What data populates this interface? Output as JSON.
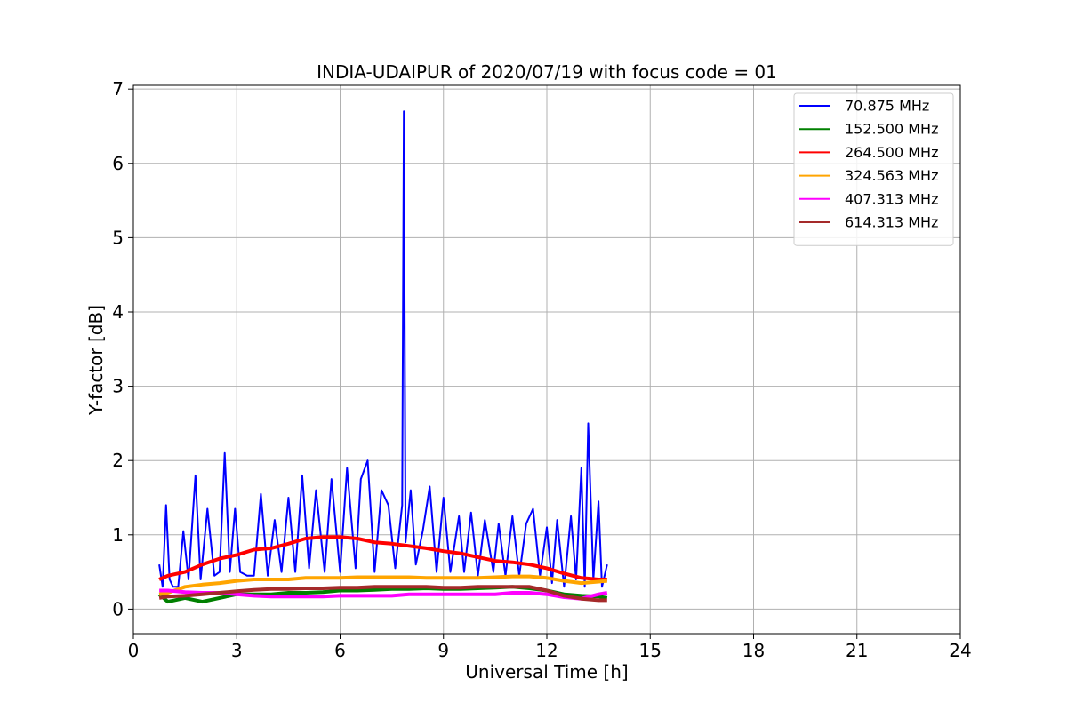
{
  "chart_data": {
    "type": "line",
    "title": "INDIA-UDAIPUR of 2020/07/19 with focus code = 01",
    "xlabel": "Universal Time [h]",
    "ylabel": "Y-factor [dB]",
    "xlim": [
      0,
      24
    ],
    "ylim": [
      -0.33,
      7.05
    ],
    "xticks": [
      0,
      3,
      6,
      9,
      12,
      15,
      18,
      21,
      24
    ],
    "yticks": [
      0,
      1,
      2,
      3,
      4,
      5,
      6,
      7
    ],
    "grid": true,
    "legend_position": "top-right",
    "series": [
      {
        "name": " 70.875 MHz",
        "color": "#0000ff",
        "x": [
          0.75,
          0.85,
          0.95,
          1.05,
          1.15,
          1.3,
          1.45,
          1.6,
          1.8,
          1.95,
          2.15,
          2.35,
          2.5,
          2.65,
          2.8,
          2.95,
          3.1,
          3.3,
          3.5,
          3.7,
          3.9,
          4.1,
          4.3,
          4.5,
          4.7,
          4.9,
          5.1,
          5.3,
          5.55,
          5.75,
          6.0,
          6.2,
          6.45,
          6.6,
          6.8,
          7.0,
          7.2,
          7.4,
          7.6,
          7.8,
          7.85,
          7.9,
          8.05,
          8.2,
          8.4,
          8.6,
          8.8,
          9.0,
          9.2,
          9.45,
          9.6,
          9.8,
          10.0,
          10.2,
          10.45,
          10.6,
          10.8,
          11.0,
          11.2,
          11.4,
          11.6,
          11.8,
          12.0,
          12.15,
          12.3,
          12.5,
          12.7,
          12.85,
          13.0,
          13.1,
          13.2,
          13.35,
          13.5,
          13.6,
          13.75
        ],
        "values": [
          0.6,
          0.3,
          1.4,
          0.4,
          0.3,
          0.3,
          1.05,
          0.4,
          1.8,
          0.4,
          1.35,
          0.45,
          0.5,
          2.1,
          0.5,
          1.35,
          0.5,
          0.45,
          0.45,
          1.55,
          0.45,
          1.2,
          0.5,
          1.5,
          0.5,
          1.8,
          0.55,
          1.6,
          0.5,
          1.75,
          0.5,
          1.9,
          0.55,
          1.75,
          2.0,
          0.5,
          1.6,
          1.4,
          0.55,
          1.4,
          6.7,
          0.9,
          1.6,
          0.6,
          1.05,
          1.65,
          0.5,
          1.5,
          0.5,
          1.25,
          0.5,
          1.3,
          0.45,
          1.2,
          0.5,
          1.15,
          0.45,
          1.25,
          0.45,
          1.15,
          1.35,
          0.45,
          1.1,
          0.35,
          1.2,
          0.3,
          1.25,
          0.4,
          1.9,
          0.3,
          2.5,
          0.4,
          1.45,
          0.3,
          0.6
        ]
      },
      {
        "name": "152.500 MHz",
        "color": "#008000",
        "x": [
          0.75,
          1.0,
          1.5,
          2.0,
          2.5,
          3.0,
          3.5,
          4.0,
          4.5,
          5.0,
          5.5,
          6.0,
          6.5,
          7.0,
          7.5,
          8.0,
          8.5,
          9.0,
          9.5,
          10.0,
          10.5,
          11.0,
          11.5,
          12.0,
          12.5,
          13.0,
          13.5,
          13.75
        ],
        "values": [
          0.2,
          0.1,
          0.15,
          0.1,
          0.15,
          0.2,
          0.2,
          0.2,
          0.22,
          0.22,
          0.23,
          0.25,
          0.25,
          0.26,
          0.27,
          0.27,
          0.28,
          0.27,
          0.27,
          0.28,
          0.29,
          0.3,
          0.28,
          0.25,
          0.2,
          0.18,
          0.17,
          0.15
        ]
      },
      {
        "name": "264.500 MHz",
        "color": "#ff0000",
        "x": [
          0.75,
          1.0,
          1.5,
          2.0,
          2.5,
          3.0,
          3.5,
          4.0,
          4.5,
          5.0,
          5.5,
          6.0,
          6.5,
          7.0,
          7.5,
          8.0,
          8.5,
          9.0,
          9.5,
          10.0,
          10.5,
          11.0,
          11.5,
          12.0,
          12.5,
          13.0,
          13.5,
          13.75
        ],
        "values": [
          0.4,
          0.45,
          0.5,
          0.6,
          0.68,
          0.73,
          0.8,
          0.82,
          0.88,
          0.95,
          0.97,
          0.97,
          0.95,
          0.9,
          0.88,
          0.85,
          0.82,
          0.78,
          0.75,
          0.7,
          0.65,
          0.63,
          0.6,
          0.55,
          0.48,
          0.42,
          0.4,
          0.4
        ]
      },
      {
        "name": "324.563 MHz",
        "color": "#ffa500",
        "x": [
          0.75,
          1.0,
          1.5,
          2.0,
          2.5,
          3.0,
          3.5,
          4.0,
          4.5,
          5.0,
          5.5,
          6.0,
          6.5,
          7.0,
          7.5,
          8.0,
          8.5,
          9.0,
          9.5,
          10.0,
          10.5,
          11.0,
          11.5,
          12.0,
          12.5,
          13.0,
          13.5,
          13.75
        ],
        "values": [
          0.2,
          0.22,
          0.3,
          0.33,
          0.35,
          0.38,
          0.4,
          0.4,
          0.4,
          0.42,
          0.42,
          0.42,
          0.43,
          0.43,
          0.43,
          0.43,
          0.42,
          0.42,
          0.42,
          0.42,
          0.43,
          0.44,
          0.44,
          0.42,
          0.38,
          0.35,
          0.37,
          0.38
        ]
      },
      {
        "name": "407.313 MHz",
        "color": "#ff00ff",
        "x": [
          0.75,
          1.0,
          1.5,
          2.0,
          2.5,
          3.0,
          3.5,
          4.0,
          4.5,
          5.0,
          5.5,
          6.0,
          6.5,
          7.0,
          7.5,
          8.0,
          8.5,
          9.0,
          9.5,
          10.0,
          10.5,
          11.0,
          11.5,
          12.0,
          12.5,
          13.0,
          13.5,
          13.75
        ],
        "values": [
          0.25,
          0.25,
          0.23,
          0.22,
          0.22,
          0.2,
          0.18,
          0.17,
          0.17,
          0.17,
          0.17,
          0.18,
          0.18,
          0.18,
          0.18,
          0.2,
          0.2,
          0.2,
          0.2,
          0.2,
          0.2,
          0.22,
          0.22,
          0.2,
          0.16,
          0.14,
          0.2,
          0.22
        ]
      },
      {
        "name": "614.313 MHz",
        "color": "#a52a2a",
        "x": [
          0.75,
          1.0,
          1.5,
          2.0,
          2.5,
          3.0,
          3.5,
          4.0,
          4.5,
          5.0,
          5.5,
          6.0,
          6.5,
          7.0,
          7.5,
          8.0,
          8.5,
          9.0,
          9.5,
          10.0,
          10.5,
          11.0,
          11.5,
          12.0,
          12.5,
          13.0,
          13.5,
          13.75
        ],
        "values": [
          0.15,
          0.17,
          0.18,
          0.2,
          0.22,
          0.24,
          0.26,
          0.27,
          0.27,
          0.28,
          0.28,
          0.29,
          0.29,
          0.3,
          0.3,
          0.3,
          0.3,
          0.29,
          0.29,
          0.3,
          0.3,
          0.3,
          0.3,
          0.25,
          0.18,
          0.14,
          0.12,
          0.12
        ]
      }
    ]
  }
}
